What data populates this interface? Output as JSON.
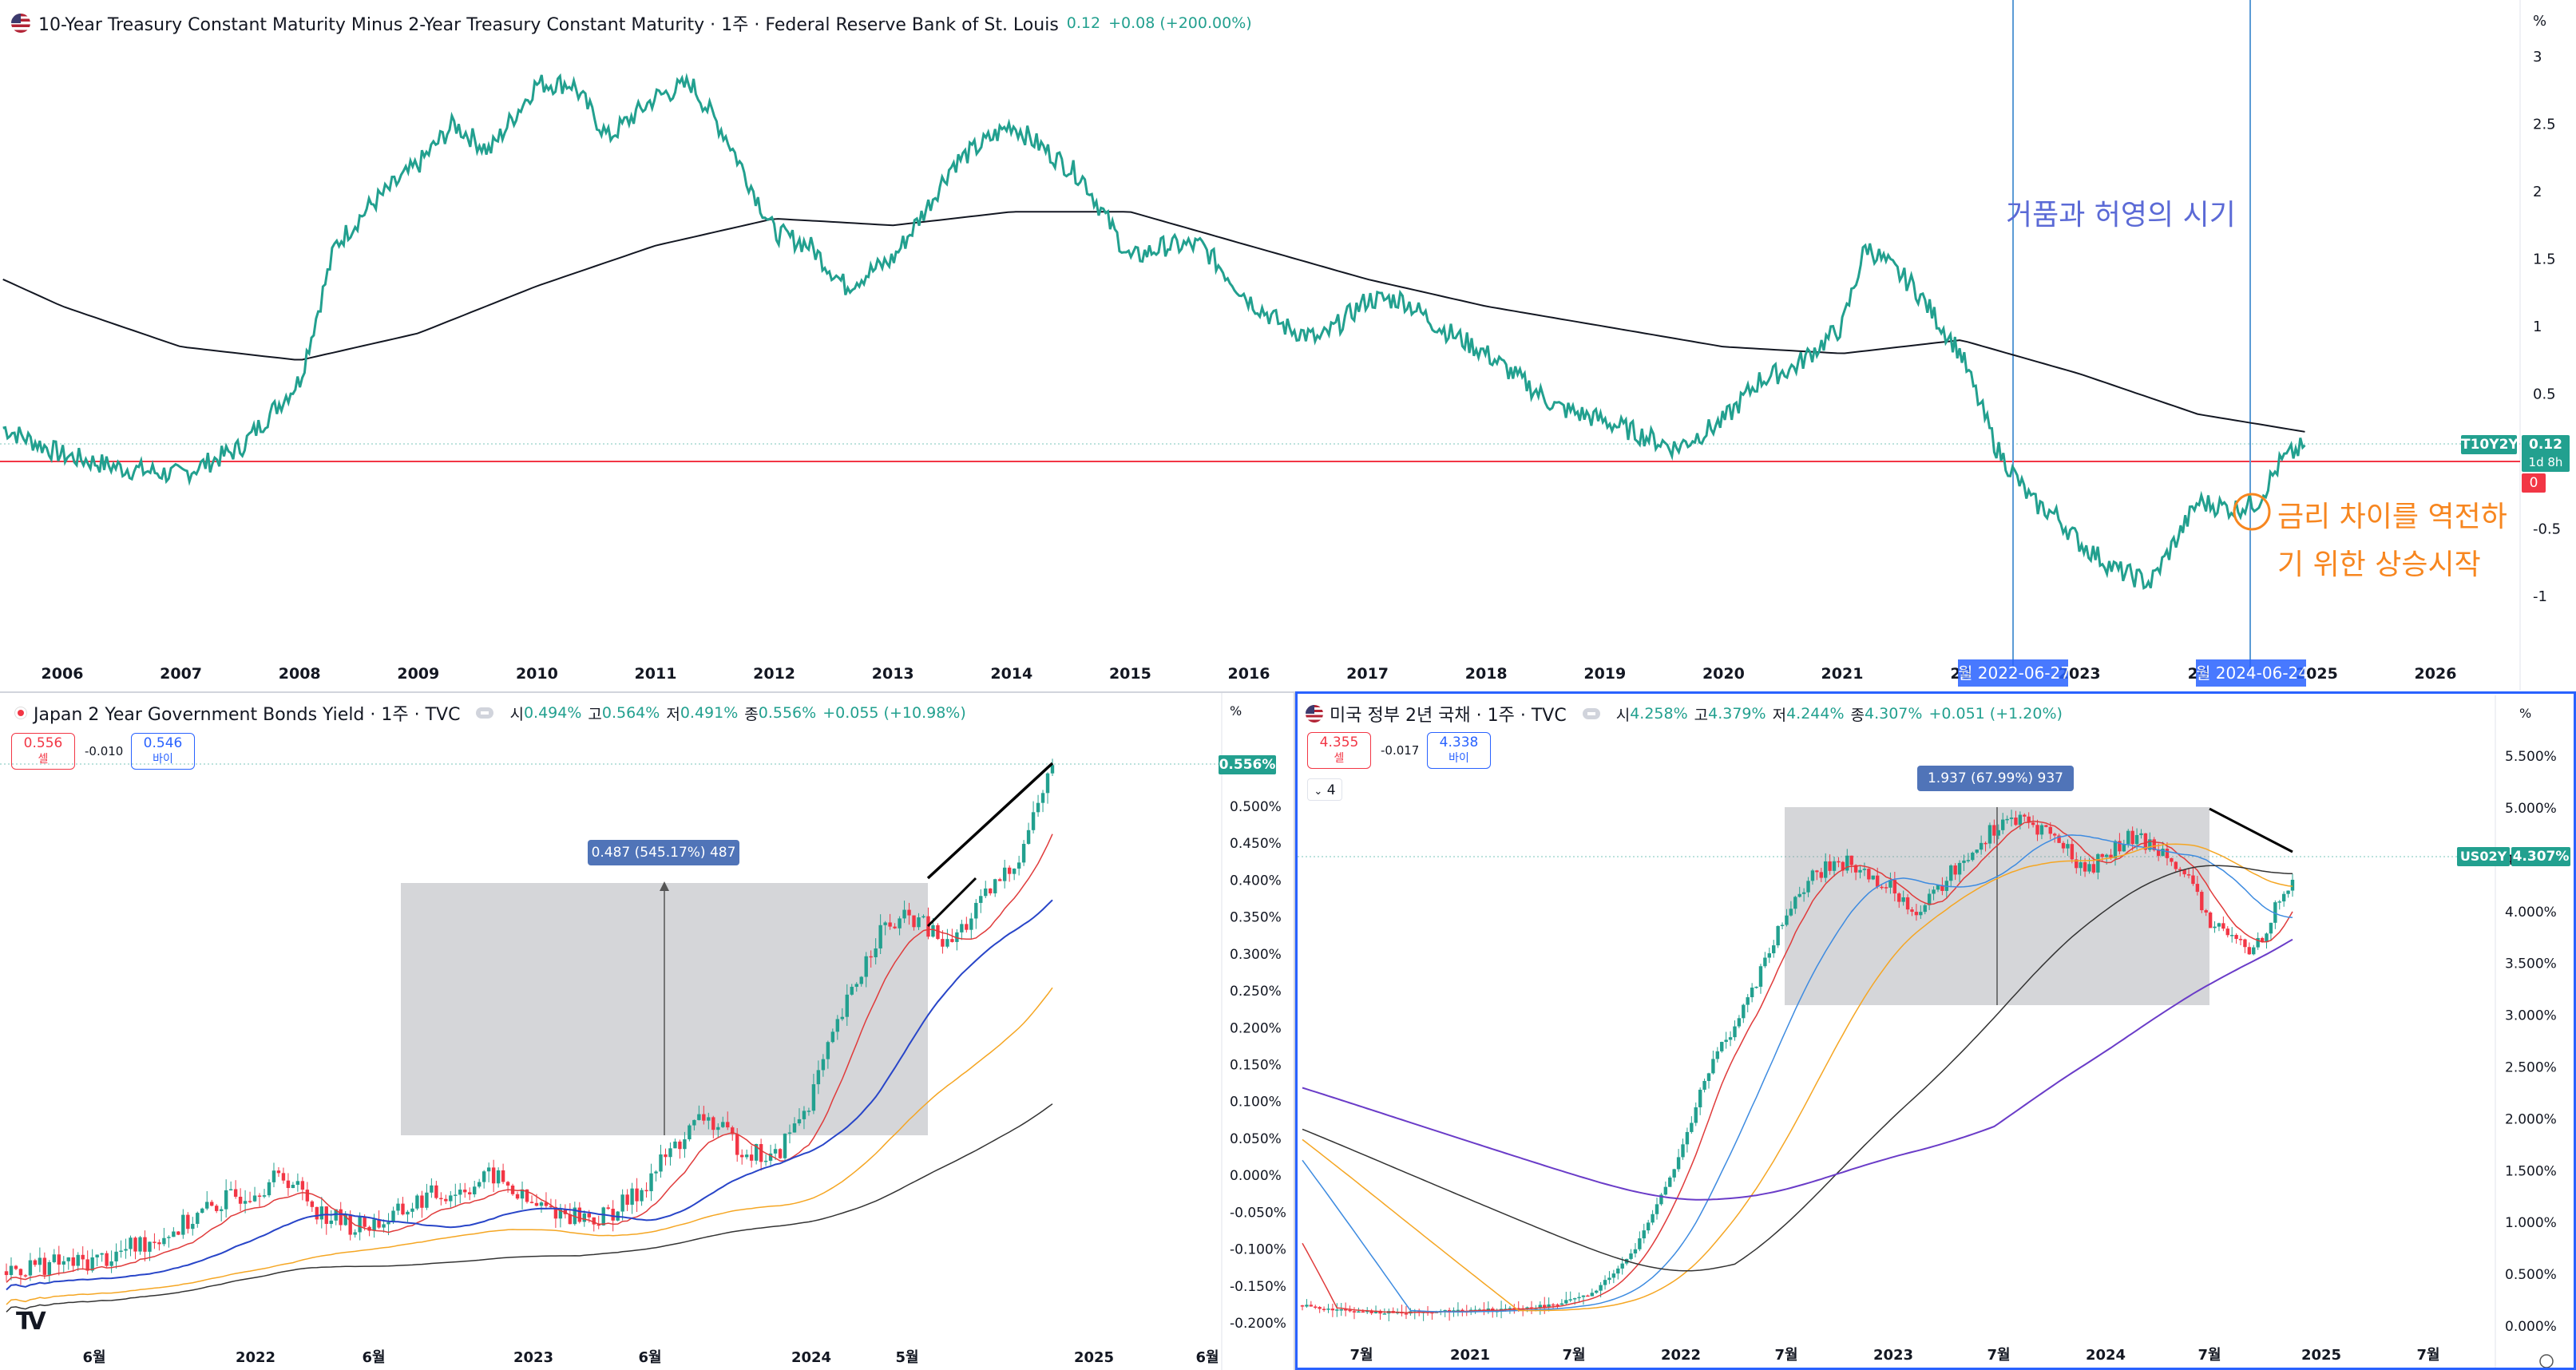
{
  "top": {
    "flag_icon": "us-flag-icon",
    "title": "10-Year Treasury Constant Maturity Minus 2-Year Treasury Constant Maturity · 1주 · Federal Reserve Bank of St. Louis",
    "value": "0.12",
    "change": "+0.08 (+200.00%)",
    "unit": "%",
    "annotation_bubble": "거품과 허영의 시기",
    "annotation_rise_1": "금리 차이를 역전하",
    "annotation_rise_2": "기 위한 상승시작",
    "price_tag_symbol": "T10Y2Y",
    "price_tag_value": "0.12",
    "price_tag_countdown": "1d 8h",
    "zero_tag": "0",
    "vline_label_1": "월 2022-06-27",
    "vline_label_2": "월 2024-06-24",
    "colors": {
      "series": "#22a08f",
      "ma": "#131722",
      "zero": "#f23645",
      "vline": "#2962ff",
      "annotation_blue": "#5b6ad6",
      "annotation_orange": "#f7861f"
    }
  },
  "bottom_left": {
    "title": "Japan 2 Year Government Bonds Yield · 1주 · TVC",
    "open_label": "시",
    "open": "0.494%",
    "high_label": "고",
    "high": "0.564%",
    "low_label": "저",
    "low": "0.491%",
    "close_label": "종",
    "close": "0.556%",
    "change": "+0.055 (+10.98%)",
    "sell_price": "0.556",
    "sell_label": "셀",
    "spread": "-0.010",
    "buy_price": "0.546",
    "buy_label": "바이",
    "unit": "%",
    "price_tag": "0.556%",
    "measure_label": "0.487 (545.17%) 487",
    "logo": "TV"
  },
  "bottom_right": {
    "title": "미국 정부 2년 국채 · 1주 · TVC",
    "open_label": "시",
    "open": "4.258%",
    "high_label": "고",
    "high": "4.379%",
    "low_label": "저",
    "low": "4.244%",
    "close_label": "종",
    "close": "4.307%",
    "change": "+0.051 (+1.20%)",
    "sell_price": "4.355",
    "sell_label": "셀",
    "spread": "-0.017",
    "buy_price": "4.338",
    "buy_label": "바이",
    "indicator_count": "4",
    "unit": "%",
    "price_tag_symbol": "US02Y",
    "price_tag_value": "4.307%",
    "measure_label": "1.937 (67.99%) 937"
  },
  "chart_data": [
    {
      "type": "line",
      "title": "10-Year Treasury Constant Maturity Minus 2-Year Treasury Constant Maturity",
      "x_ticks": [
        "2006",
        "2007",
        "2008",
        "2009",
        "2010",
        "2011",
        "2012",
        "2013",
        "2014",
        "2015",
        "2016",
        "2017",
        "2018",
        "2019",
        "2020",
        "2021",
        "20",
        "2023",
        "20",
        "2025",
        "2026"
      ],
      "y_ticks": [
        "3",
        "2.5",
        "2",
        "1.5",
        "1",
        "0.5",
        "0",
        "-0.5",
        "-1"
      ],
      "ylim": [
        -1.2,
        3.3
      ],
      "xlim": [
        2005.5,
        2027
      ],
      "series": [
        {
          "name": "T10Y2Y",
          "x": [
            2005.5,
            2006,
            2006.5,
            2007,
            2007.5,
            2008,
            2008.3,
            2008.6,
            2009,
            2009.3,
            2009.6,
            2010,
            2010.3,
            2010.6,
            2011,
            2011.3,
            2011.6,
            2012,
            2012.3,
            2012.6,
            2013,
            2013.3,
            2013.5,
            2014,
            2014.3,
            2014.6,
            2015,
            2015.3,
            2015.6,
            2016,
            2016.3,
            2016.6,
            2017,
            2017.3,
            2017.6,
            2018,
            2018.3,
            2018.6,
            2019,
            2019.3,
            2019.6,
            2020,
            2020.3,
            2020.6,
            2021,
            2021.2,
            2021.6,
            2022,
            2022.3,
            2022.6,
            2022.8,
            2023,
            2023.3,
            2023.6,
            2023.8,
            2024,
            2024.3,
            2024.5,
            2024.7,
            2024.9
          ],
          "values": [
            0.25,
            0.05,
            -0.05,
            -0.1,
            0.1,
            0.6,
            1.6,
            1.9,
            2.2,
            2.5,
            2.3,
            2.8,
            2.8,
            2.4,
            2.7,
            2.8,
            2.4,
            1.7,
            1.6,
            1.3,
            1.5,
            1.9,
            2.2,
            2.5,
            2.3,
            2.1,
            1.5,
            1.6,
            1.6,
            1.2,
            1.0,
            0.9,
            1.2,
            1.2,
            1.0,
            0.8,
            0.6,
            0.4,
            0.3,
            0.2,
            0.1,
            0.3,
            0.6,
            0.7,
            1.0,
            1.6,
            1.3,
            0.8,
            0.1,
            -0.3,
            -0.4,
            -0.6,
            -0.8,
            -0.9,
            -0.6,
            -0.3,
            -0.35,
            -0.3,
            0.0,
            0.12
          ]
        },
        {
          "name": "MA",
          "x": [
            2005.5,
            2006,
            2007,
            2008,
            2009,
            2010,
            2011,
            2012,
            2013,
            2014,
            2015,
            2016,
            2017,
            2018,
            2019,
            2020,
            2021,
            2022,
            2023,
            2024,
            2024.9
          ],
          "values": [
            1.35,
            1.15,
            0.85,
            0.75,
            0.95,
            1.3,
            1.6,
            1.8,
            1.75,
            1.85,
            1.85,
            1.6,
            1.35,
            1.15,
            1.0,
            0.85,
            0.8,
            0.9,
            0.65,
            0.35,
            0.22
          ]
        }
      ]
    },
    {
      "type": "candlestick",
      "title": "Japan 2 Year Government Bonds Yield",
      "x_ticks": [
        "6월",
        "2022",
        "6월",
        "2023",
        "6월",
        "2024",
        "5월",
        "2025",
        "6월"
      ],
      "y_ticks": [
        "0.550%",
        "0.500%",
        "0.450%",
        "0.400%",
        "0.350%",
        "0.300%",
        "0.250%",
        "0.200%",
        "0.150%",
        "0.100%",
        "0.050%",
        "0.000%",
        "-0.050%",
        "-0.100%",
        "-0.150%",
        "-0.200%"
      ],
      "ylim": [
        -0.2,
        0.56
      ],
      "series": [
        {
          "name": "close",
          "x": [
            0,
            10,
            20,
            30,
            40,
            50,
            60,
            70,
            80,
            90,
            100,
            110,
            120,
            130,
            140,
            150,
            160,
            170,
            180,
            190,
            200,
            210,
            220,
            230,
            240,
            250,
            260,
            270,
            280,
            290,
            300
          ],
          "values": [
            -0.13,
            -0.12,
            -0.12,
            -0.11,
            -0.09,
            -0.07,
            -0.04,
            -0.02,
            0.0,
            -0.05,
            -0.07,
            -0.06,
            -0.03,
            -0.02,
            0.0,
            -0.04,
            -0.05,
            -0.06,
            -0.03,
            0.03,
            0.08,
            0.04,
            0.02,
            0.1,
            0.22,
            0.33,
            0.35,
            0.31,
            0.37,
            0.43,
            0.556
          ]
        }
      ]
    },
    {
      "type": "candlestick",
      "title": "미국 정부 2년 국채",
      "x_ticks": [
        "7월",
        "2021",
        "7월",
        "2022",
        "7월",
        "2023",
        "7월",
        "2024",
        "7월",
        "2025",
        "7월"
      ],
      "y_ticks": [
        "5.500%",
        "5.000%",
        "4.500%",
        "4.000%",
        "3.500%",
        "3.000%",
        "2.500%",
        "2.000%",
        "1.500%",
        "1.000%",
        "0.500%",
        "0.000%"
      ],
      "ylim": [
        -0.1,
        5.6
      ],
      "series": [
        {
          "name": "close",
          "x": [
            0,
            10,
            20,
            30,
            40,
            50,
            60,
            70,
            80,
            90,
            100,
            110,
            120,
            130,
            140,
            150,
            160,
            170,
            180,
            190,
            200,
            210,
            220,
            230,
            240
          ],
          "values": [
            0.2,
            0.15,
            0.13,
            0.14,
            0.15,
            0.16,
            0.2,
            0.3,
            0.7,
            1.5,
            2.6,
            3.3,
            4.2,
            4.5,
            4.3,
            4.0,
            4.5,
            4.9,
            4.8,
            4.4,
            4.7,
            4.6,
            3.9,
            3.6,
            4.307
          ]
        }
      ]
    }
  ]
}
